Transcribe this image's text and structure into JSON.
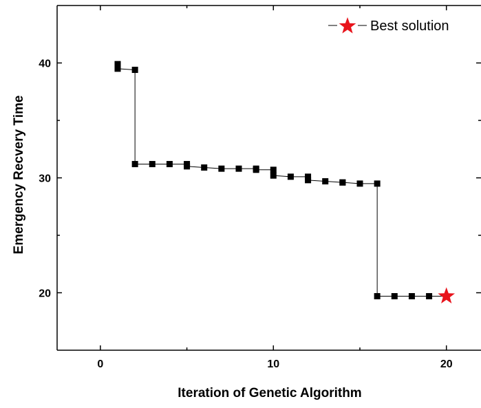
{
  "chart_data": {
    "type": "scatter",
    "title": "",
    "xlabel": "Iteration of Genetic Algorithm",
    "ylabel": "Emergency Recvery Time",
    "xlim": [
      -2.5,
      22
    ],
    "ylim": [
      15,
      45
    ],
    "xticks": [
      0,
      10,
      20
    ],
    "xtick_labels": [
      "0",
      "10",
      "20"
    ],
    "yticks": [
      20,
      30,
      40
    ],
    "ytick_labels": [
      "20",
      "30",
      "40"
    ],
    "grid": false,
    "legend_position": "top-right",
    "series": [
      {
        "marker": "square",
        "color": "#000000",
        "points": [
          [
            1,
            39.9
          ],
          [
            1,
            39.7
          ],
          [
            1,
            39.5
          ],
          [
            2,
            39.4
          ],
          [
            2,
            31.2
          ],
          [
            3,
            31.2
          ],
          [
            4,
            31.2
          ],
          [
            5,
            31.2
          ],
          [
            5,
            31.0
          ],
          [
            6,
            30.9
          ],
          [
            7,
            30.8
          ],
          [
            8,
            30.8
          ],
          [
            9,
            30.8
          ],
          [
            9,
            30.7
          ],
          [
            10,
            30.7
          ],
          [
            10,
            30.2
          ],
          [
            11,
            30.1
          ],
          [
            12,
            30.1
          ],
          [
            12,
            29.8
          ],
          [
            13,
            29.7
          ],
          [
            14,
            29.6
          ],
          [
            14,
            29.6
          ],
          [
            15,
            29.5
          ],
          [
            16,
            29.5
          ],
          [
            16,
            19.7
          ],
          [
            17,
            19.7
          ],
          [
            18,
            19.7
          ],
          [
            19,
            19.7
          ]
        ]
      },
      {
        "name": "Best solution",
        "marker": "star",
        "color": "#e8141c",
        "points": [
          [
            20,
            19.7
          ]
        ]
      }
    ]
  }
}
